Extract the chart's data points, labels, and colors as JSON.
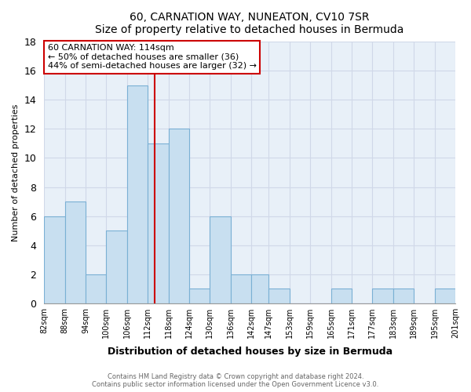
{
  "title": "60, CARNATION WAY, NUNEATON, CV10 7SR",
  "subtitle": "Size of property relative to detached houses in Bermuda",
  "xlabel": "Distribution of detached houses by size in Bermuda",
  "ylabel": "Number of detached properties",
  "bins": [
    82,
    88,
    94,
    100,
    106,
    112,
    118,
    124,
    130,
    136,
    142,
    147,
    153,
    159,
    165,
    171,
    177,
    183,
    189,
    195,
    201
  ],
  "counts": [
    6,
    7,
    2,
    5,
    15,
    11,
    12,
    1,
    6,
    2,
    2,
    1,
    0,
    0,
    1,
    0,
    1,
    1,
    0,
    1
  ],
  "bar_color": "#c8dff0",
  "bar_edge_color": "#7ab0d4",
  "property_line_x": 114,
  "property_line_color": "#cc0000",
  "annotation_text": "60 CARNATION WAY: 114sqm\n← 50% of detached houses are smaller (36)\n44% of semi-detached houses are larger (32) →",
  "annotation_box_color": "#ffffff",
  "annotation_box_edge_color": "#cc0000",
  "ylim": [
    0,
    18
  ],
  "yticks": [
    0,
    2,
    4,
    6,
    8,
    10,
    12,
    14,
    16,
    18
  ],
  "tick_labels": [
    "82sqm",
    "88sqm",
    "94sqm",
    "100sqm",
    "106sqm",
    "112sqm",
    "118sqm",
    "124sqm",
    "130sqm",
    "136sqm",
    "142sqm",
    "147sqm",
    "153sqm",
    "159sqm",
    "165sqm",
    "171sqm",
    "177sqm",
    "183sqm",
    "189sqm",
    "195sqm",
    "201sqm"
  ],
  "footer_line1": "Contains HM Land Registry data © Crown copyright and database right 2024.",
  "footer_line2": "Contains public sector information licensed under the Open Government Licence v3.0.",
  "grid_color": "#d0d8e8",
  "bg_color": "#e8f0f8"
}
